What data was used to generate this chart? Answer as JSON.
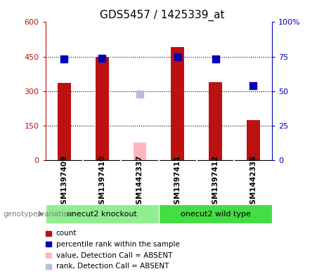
{
  "title": "GDS5457 / 1425339_at",
  "samples": [
    "GSM1397409",
    "GSM1397410",
    "GSM1442337",
    "GSM1397411",
    "GSM1397412",
    "GSM1442336"
  ],
  "counts": [
    335,
    450,
    null,
    490,
    340,
    175
  ],
  "counts_absent": [
    null,
    null,
    75,
    null,
    null,
    null
  ],
  "ranks": [
    73,
    74,
    null,
    75,
    73,
    54
  ],
  "ranks_absent": [
    null,
    null,
    48,
    null,
    null,
    null
  ],
  "groups": [
    {
      "label": "onecut2 knockout",
      "samples": [
        0,
        1,
        2
      ],
      "color": "#90EE90"
    },
    {
      "label": "onecut2 wild type",
      "samples": [
        3,
        4,
        5
      ],
      "color": "#44DD44"
    }
  ],
  "ylim_left": [
    0,
    600
  ],
  "ylim_right": [
    0,
    100
  ],
  "yticks_left": [
    0,
    150,
    300,
    450,
    600
  ],
  "yticks_right": [
    0,
    25,
    50,
    75,
    100
  ],
  "ytick_labels_left": [
    "0",
    "150",
    "300",
    "450",
    "600"
  ],
  "ytick_labels_right": [
    "0",
    "25",
    "50",
    "75",
    "100%"
  ],
  "bar_color": "#BB1111",
  "bar_color_absent": "#FFB6C1",
  "dot_color": "#0000BB",
  "dot_color_absent": "#BBBBDD",
  "bar_width": 0.35,
  "dot_size": 55,
  "bg_color": "#D3D3D3",
  "legend_items": [
    {
      "label": "count",
      "color": "#BB1111"
    },
    {
      "label": "percentile rank within the sample",
      "color": "#0000BB"
    },
    {
      "label": "value, Detection Call = ABSENT",
      "color": "#FFB6C1"
    },
    {
      "label": "rank, Detection Call = ABSENT",
      "color": "#BBBBDD"
    }
  ]
}
